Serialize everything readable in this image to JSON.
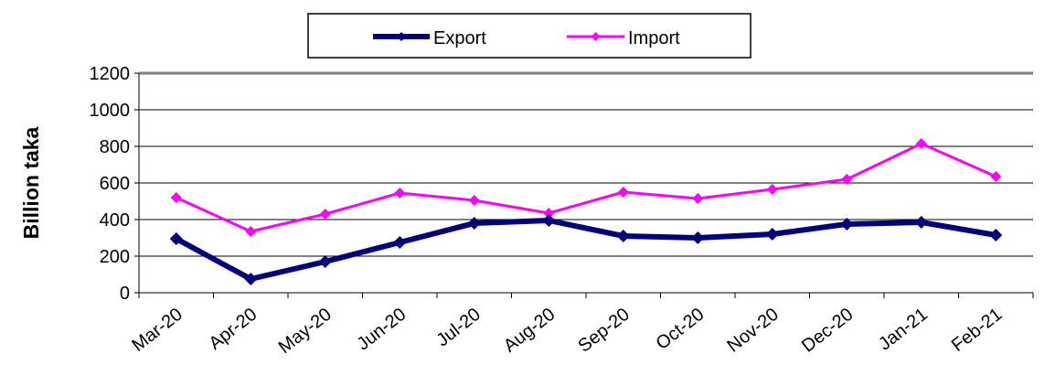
{
  "chart_data": {
    "type": "line",
    "ylabel": "Billion taka",
    "ylim": [
      0,
      1200
    ],
    "yticks": [
      0,
      200,
      400,
      600,
      800,
      1000,
      1200
    ],
    "grid": true,
    "legend_position": "top",
    "categories": [
      "Mar-20",
      "Apr-20",
      "May-20",
      "Jun-20",
      "Jul-20",
      "Aug-20",
      "Sep-20",
      "Oct-20",
      "Nov-20",
      "Dec-20",
      "Jan-21",
      "Feb-21"
    ],
    "series": [
      {
        "name": "Export",
        "color": "#000080",
        "values": [
          295,
          75,
          170,
          275,
          380,
          395,
          310,
          300,
          320,
          375,
          385,
          315
        ]
      },
      {
        "name": "Import",
        "color": "#ff00ff",
        "values": [
          520,
          335,
          430,
          545,
          505,
          435,
          550,
          515,
          565,
          620,
          815,
          635
        ]
      }
    ]
  }
}
